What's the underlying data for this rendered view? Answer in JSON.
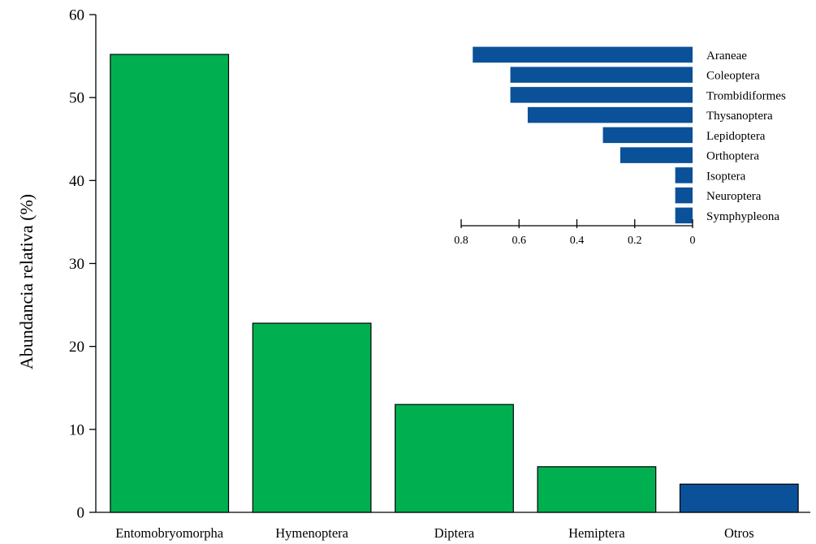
{
  "chart_data": [
    {
      "type": "bar",
      "ylabel": "Abundancia relativa (%)",
      "xlabel": "",
      "ylim": [
        0,
        60
      ],
      "yticks": [
        0,
        10,
        20,
        30,
        40,
        50,
        60
      ],
      "categories": [
        "Entomobryomorpha",
        "Hymenoptera",
        "Diptera",
        "Hemiptera",
        "Otros"
      ],
      "values": [
        55.2,
        22.8,
        13.0,
        5.5,
        3.4
      ],
      "colors": [
        "#00b050",
        "#00b050",
        "#00b050",
        "#00b050",
        "#0a5199"
      ],
      "grid": false
    },
    {
      "type": "bar",
      "orientation": "horizontal",
      "reversed_x_axis": true,
      "categories": [
        "Araneae",
        "Coleoptera",
        "Trombidiformes",
        "Thysanoptera",
        "Lepidoptera",
        "Orthoptera",
        "Isoptera",
        "Neuroptera",
        "Symphypleona"
      ],
      "values": [
        0.76,
        0.63,
        0.63,
        0.57,
        0.31,
        0.25,
        0.06,
        0.06,
        0.06
      ],
      "xlim": [
        0,
        0.8
      ],
      "xticks": [
        0.8,
        0.6,
        0.4,
        0.2,
        0
      ],
      "xtick_labels": [
        "0.8",
        "0.6",
        "0.4",
        "0.2",
        "0"
      ],
      "color": "#0a5199",
      "grid": false
    }
  ]
}
